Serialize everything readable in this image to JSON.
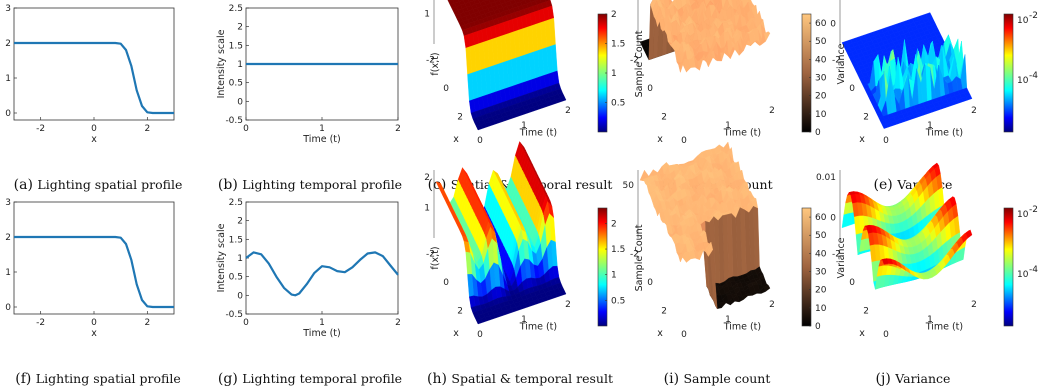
{
  "colors": {
    "line": "#1f77b4",
    "axis": "#333333",
    "jet": [
      "#00007f",
      "#0000ff",
      "#007fff",
      "#00ffff",
      "#7fff7f",
      "#ffff00",
      "#ff7f00",
      "#ff0000",
      "#7f0000"
    ],
    "copper_dark": "#000000",
    "copper_light": "#ffc77f",
    "variance_floor": "#0a2fd8"
  },
  "icons": {
    "surface": "surface-plot-icon"
  },
  "rows": [
    {
      "spatial": {
        "caption_letter": "(a)",
        "caption_text": "Lighting spatial profile",
        "chart_data": {
          "type": "line",
          "title": "",
          "xlabel": "x",
          "ylabel": "",
          "xlim": [
            -3,
            3
          ],
          "ylim": [
            -0.2,
            3
          ],
          "xticks": [
            "-2",
            "0",
            "2"
          ],
          "yticks": [
            "0",
            "1",
            "2",
            "3"
          ],
          "series": [
            {
              "x": [
                -3,
                0.8,
                1.0,
                1.2,
                1.4,
                1.5,
                1.6,
                1.8,
                2.0,
                2.2,
                3
              ],
              "y": [
                2,
                2,
                1.98,
                1.8,
                1.35,
                1.0,
                0.65,
                0.2,
                0.02,
                0,
                0
              ]
            }
          ]
        }
      },
      "temporal": {
        "caption_letter": "(b)",
        "caption_text": "Lighting temporal profile",
        "chart_data": {
          "type": "line",
          "title": "",
          "xlabel": "Time (t)",
          "ylabel": "Intensity scale",
          "xlim": [
            0,
            2
          ],
          "ylim": [
            -0.5,
            2.5
          ],
          "xticks": [
            "0",
            "1",
            "2"
          ],
          "yticks": [
            "-0.5",
            "0",
            "0.5",
            "1",
            "1.5",
            "2",
            "2.5"
          ],
          "series": [
            {
              "x": [
                0,
                2
              ],
              "y": [
                1,
                1
              ]
            }
          ]
        }
      },
      "result": {
        "caption_letter": "(c)",
        "caption_text": "Spatial & temporal result",
        "chart_data": {
          "type": "surface",
          "title": "",
          "xlabel": "x",
          "ylabel": "Time (t)",
          "zlabel": "f(x,t)",
          "x_ticks": [
            "-2",
            "0",
            "2"
          ],
          "t_ticks": [
            "0",
            "1",
            "2"
          ],
          "z_ticks": [
            "1",
            "2"
          ],
          "colorbar_ticks": [
            "0.5",
            "1",
            "1.5",
            "2"
          ],
          "colorbar_range": [
            0,
            2
          ],
          "colormap": "jet",
          "temporal_modulation": "constant",
          "z_max": 2
        }
      },
      "count": {
        "caption_letter": "(d)",
        "caption_text": "Sample count",
        "chart_data": {
          "type": "surface",
          "title": "",
          "xlabel": "x",
          "ylabel": "Time (t)",
          "zlabel": "Sample Count",
          "x_ticks": [
            "-2",
            "0",
            "2"
          ],
          "t_ticks": [
            "0",
            "1",
            "2"
          ],
          "z_ticks": [
            "50"
          ],
          "colorbar_ticks": [
            "0",
            "10",
            "20",
            "30",
            "40",
            "50",
            "60"
          ],
          "colorbar_range": [
            0,
            65
          ],
          "colormap": "copper",
          "z_max": 64
        }
      },
      "variance": {
        "caption_letter": "(e)",
        "caption_text": "Variance",
        "chart_data": {
          "type": "surface",
          "title": "",
          "xlabel": "x",
          "ylabel": "Time (t)",
          "zlabel": "Variance",
          "x_ticks": [
            "-2",
            "0",
            "2"
          ],
          "t_ticks": [
            "0",
            "1",
            "2"
          ],
          "z_ticks": [
            "0.01",
            "0"
          ],
          "colorbar_ticks_base": "10",
          "colorbar_ticks_exp": [
            "-2",
            "-4"
          ],
          "colorbar_scale": "log",
          "colormap": "jet"
        }
      }
    },
    {
      "spatial": {
        "caption_letter": "(f)",
        "caption_text": "Lighting spatial profile",
        "chart_data": {
          "type": "line",
          "title": "",
          "xlabel": "x",
          "ylabel": "",
          "xlim": [
            -3,
            3
          ],
          "ylim": [
            -0.2,
            3
          ],
          "xticks": [
            "-2",
            "0",
            "2"
          ],
          "yticks": [
            "0",
            "1",
            "2",
            "3"
          ],
          "series": [
            {
              "x": [
                -3,
                0.8,
                1.0,
                1.2,
                1.4,
                1.5,
                1.6,
                1.8,
                2.0,
                2.2,
                3
              ],
              "y": [
                2,
                2,
                1.98,
                1.8,
                1.35,
                1.0,
                0.65,
                0.2,
                0.02,
                0,
                0
              ]
            }
          ]
        }
      },
      "temporal": {
        "caption_letter": "(g)",
        "caption_text": "Lighting temporal profile",
        "chart_data": {
          "type": "line",
          "title": "",
          "xlabel": "Time (t)",
          "ylabel": "Intensity scale",
          "xlim": [
            0,
            2
          ],
          "ylim": [
            -0.5,
            2.5
          ],
          "xticks": [
            "0",
            "1",
            "2"
          ],
          "yticks": [
            "-0.5",
            "0",
            "0.5",
            "1",
            "1.5",
            "2",
            "2.5"
          ],
          "series": [
            {
              "x": [
                0,
                0.1,
                0.2,
                0.3,
                0.4,
                0.5,
                0.6,
                0.65,
                0.7,
                0.8,
                0.9,
                1.0,
                1.1,
                1.2,
                1.3,
                1.4,
                1.5,
                1.6,
                1.7,
                1.8,
                1.9,
                2.0
              ],
              "y": [
                1.0,
                1.15,
                1.1,
                0.85,
                0.5,
                0.2,
                0.02,
                0.0,
                0.05,
                0.3,
                0.6,
                0.78,
                0.75,
                0.65,
                0.62,
                0.75,
                0.95,
                1.12,
                1.15,
                1.05,
                0.8,
                0.55
              ]
            }
          ]
        }
      },
      "result": {
        "caption_letter": "(h)",
        "caption_text": "Spatial & temporal result",
        "chart_data": {
          "type": "surface",
          "title": "",
          "xlabel": "x",
          "ylabel": "Time (t)",
          "zlabel": "f(x,t)",
          "x_ticks": [
            "-2",
            "0",
            "2"
          ],
          "t_ticks": [
            "0",
            "1",
            "2"
          ],
          "z_ticks": [
            "1",
            "2"
          ],
          "colorbar_ticks": [
            "0.5",
            "1",
            "1.5",
            "2"
          ],
          "colorbar_range": [
            0,
            2.3
          ],
          "colormap": "jet",
          "temporal_modulation": "oscillating",
          "z_max": 2.3
        }
      },
      "count": {
        "caption_letter": "(i)",
        "caption_text": "Sample count",
        "chart_data": {
          "type": "surface",
          "title": "",
          "xlabel": "x",
          "ylabel": "Time (t)",
          "zlabel": "Sample Count",
          "x_ticks": [
            "-2",
            "0",
            "2"
          ],
          "t_ticks": [
            "0",
            "1",
            "2"
          ],
          "z_ticks": [
            "50"
          ],
          "colorbar_ticks": [
            "0",
            "10",
            "20",
            "30",
            "40",
            "50",
            "60"
          ],
          "colorbar_range": [
            0,
            65
          ],
          "colormap": "copper",
          "z_max": 64
        }
      },
      "variance": {
        "caption_letter": "(j)",
        "caption_text": "Variance",
        "chart_data": {
          "type": "surface",
          "title": "",
          "xlabel": "x",
          "ylabel": "Time (t)",
          "zlabel": "Variance",
          "x_ticks": [
            "-2",
            "0",
            "2"
          ],
          "t_ticks": [
            "0",
            "1",
            "2"
          ],
          "z_ticks": [
            "0.01",
            "0"
          ],
          "colorbar_ticks_base": "10",
          "colorbar_ticks_exp": [
            "-2",
            "-4"
          ],
          "colorbar_scale": "log",
          "colormap": "jet"
        }
      }
    }
  ]
}
